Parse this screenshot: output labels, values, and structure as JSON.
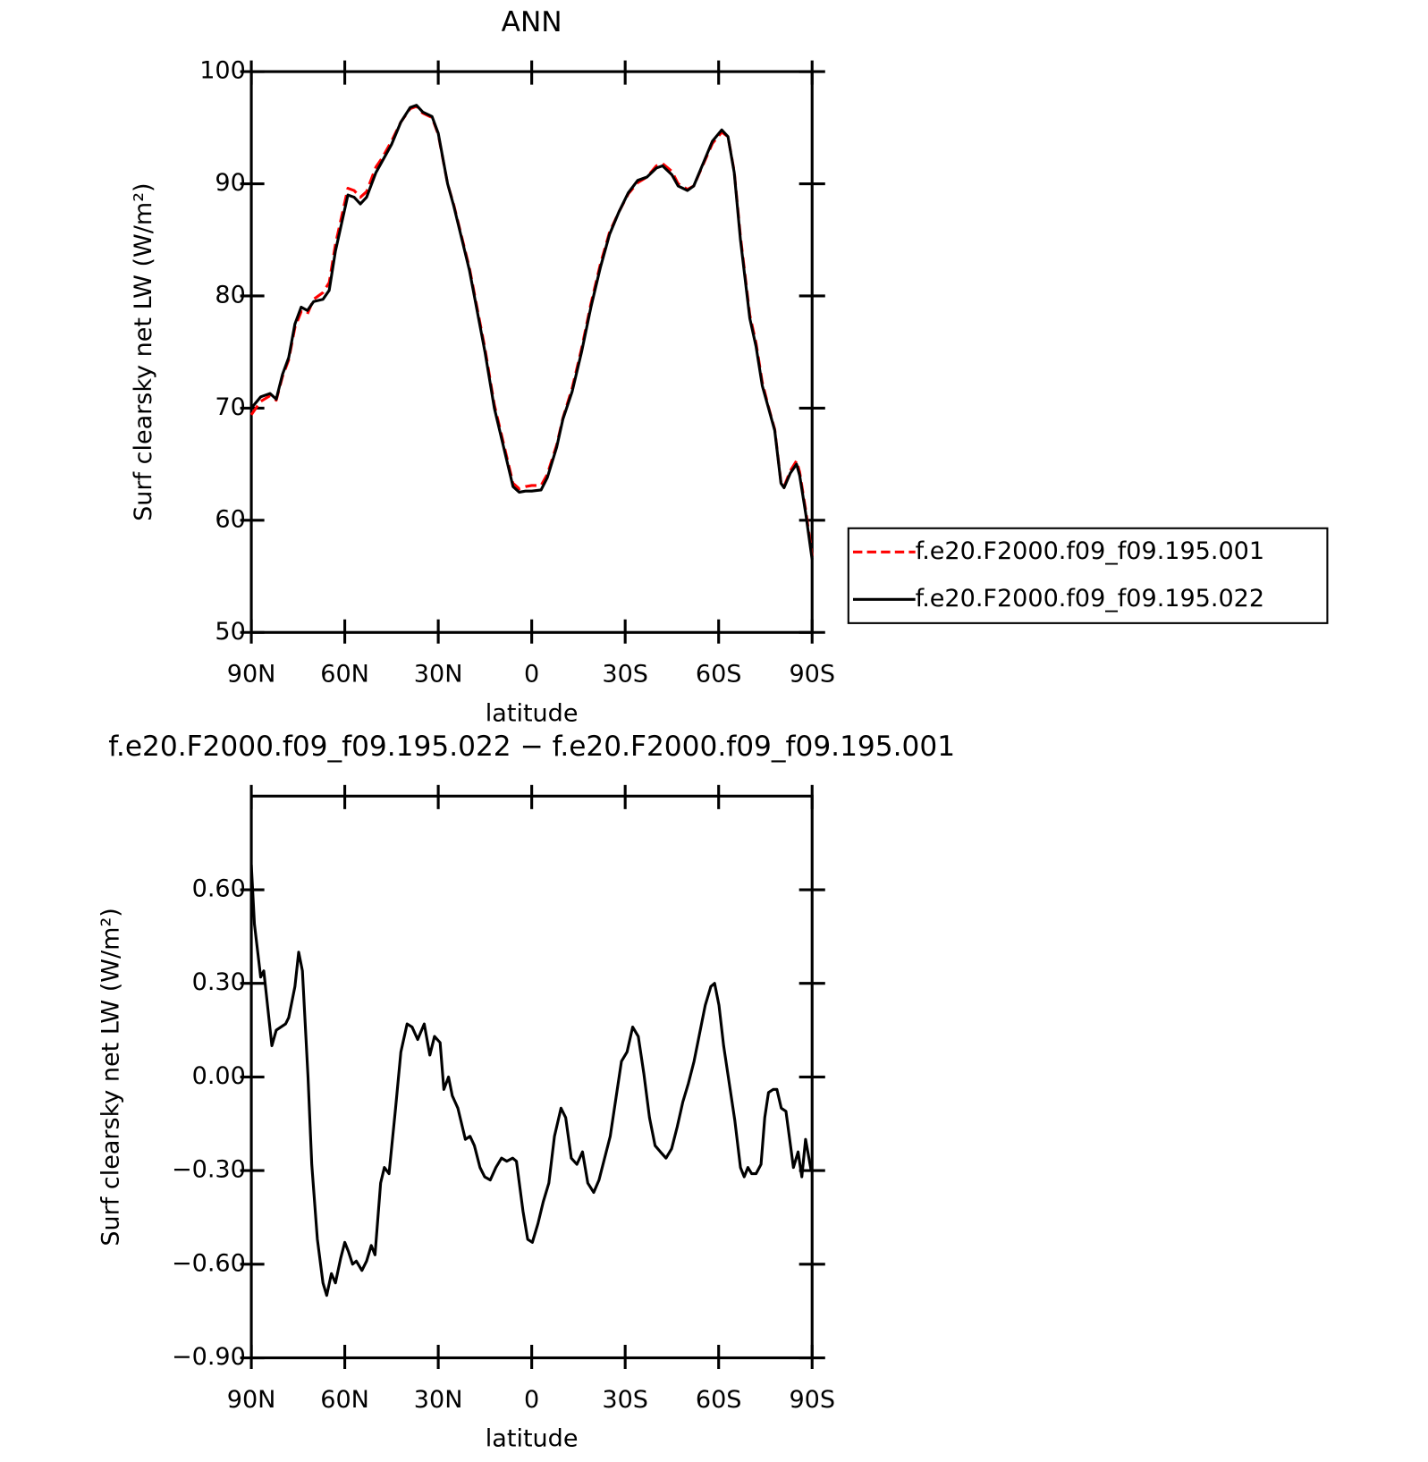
{
  "chart_data": [
    {
      "type": "line",
      "title": "ANN",
      "xlabel": "latitude",
      "ylabel": "Surf clearsky net LW (W/m²)",
      "xlim": [
        90,
        -90
      ],
      "ylim": [
        50,
        100
      ],
      "xticks": [
        {
          "value": 90,
          "label": "90N"
        },
        {
          "value": 60,
          "label": "60N"
        },
        {
          "value": 30,
          "label": "30N"
        },
        0,
        {
          "value": -30,
          "label": "30S"
        },
        {
          "value": -60,
          "label": "60S"
        },
        {
          "value": -90,
          "label": "90S"
        }
      ],
      "yticks": [
        50,
        60,
        70,
        80,
        90,
        100
      ],
      "legend": "outside-right",
      "x": [
        90,
        87,
        84,
        82,
        80,
        78,
        76,
        74,
        72,
        70,
        67,
        65,
        63,
        61,
        59,
        57,
        55,
        53,
        50,
        48,
        45,
        42,
        39,
        37,
        35,
        32,
        30,
        27,
        25,
        20,
        15,
        12,
        9,
        6,
        4,
        2,
        0,
        -3,
        -5,
        -8,
        -10,
        -13,
        -16,
        -19,
        -22,
        -25,
        -28,
        -31,
        -34,
        -37,
        -40,
        -42,
        -45,
        -47,
        -50,
        -52,
        -55,
        -58,
        -61,
        -63,
        -65,
        -67,
        -70,
        -72,
        -74,
        -76,
        -78,
        -80,
        -81,
        -83,
        -85,
        -86,
        -88,
        -90
      ],
      "series": [
        {
          "name": "f.e20.F2000.f09_f09.195.001",
          "color": "#ff0000",
          "dash": "12 6",
          "values": [
            69.4,
            70.6,
            71.1,
            70.7,
            72.8,
            74.3,
            77.2,
            78.6,
            78.4,
            79.7,
            80.3,
            81.2,
            84.6,
            87.1,
            89.6,
            89.4,
            88.8,
            89.3,
            91.5,
            92.3,
            93.8,
            95.5,
            96.7,
            96.9,
            96.3,
            95.9,
            94.4,
            90.0,
            88.1,
            82.5,
            75.3,
            70.3,
            66.8,
            63.3,
            62.8,
            63.0,
            63.1,
            63.1,
            64.1,
            66.7,
            69.1,
            71.8,
            75.3,
            79.3,
            82.8,
            85.7,
            87.5,
            89.1,
            90.1,
            90.6,
            91.6,
            91.8,
            91.1,
            90.0,
            89.5,
            89.8,
            91.7,
            93.6,
            94.6,
            94.2,
            91.1,
            85.3,
            78.3,
            75.8,
            72.3,
            70.1,
            68.1,
            63.4,
            63.0,
            64.4,
            65.3,
            64.3,
            60.8,
            56.8
          ]
        },
        {
          "name": "f.e20.F2000.f09_f09.195.022",
          "color": "#000000",
          "values": [
            70.0,
            71.0,
            71.3,
            70.8,
            73.0,
            74.5,
            77.5,
            79.0,
            78.7,
            79.5,
            79.7,
            80.5,
            84.0,
            86.5,
            89.0,
            88.8,
            88.2,
            88.8,
            91.0,
            92.0,
            93.5,
            95.5,
            96.8,
            97.0,
            96.4,
            96.0,
            94.5,
            90.0,
            88.0,
            82.3,
            75.0,
            70.0,
            66.5,
            63.0,
            62.5,
            62.6,
            62.6,
            62.7,
            63.8,
            66.5,
            69.0,
            71.5,
            75.0,
            79.0,
            82.5,
            85.5,
            87.5,
            89.2,
            90.3,
            90.6,
            91.4,
            91.6,
            90.8,
            89.8,
            89.4,
            89.8,
            91.8,
            93.8,
            94.8,
            94.2,
            91.0,
            85.0,
            78.0,
            75.5,
            72.0,
            70.0,
            68.0,
            63.3,
            62.9,
            64.2,
            65.0,
            64.0,
            60.5,
            56.5
          ]
        }
      ]
    },
    {
      "type": "line",
      "title": "f.e20.F2000.f09_f09.195.022 − f.e20.F2000.f09_f09.195.001",
      "xlabel": "latitude",
      "ylabel": "Surf clearsky net LW (W/m²)",
      "xlim": [
        90,
        -90
      ],
      "ylim": [
        -0.9,
        0.9
      ],
      "xticks": [
        {
          "value": 90,
          "label": "90N"
        },
        {
          "value": 60,
          "label": "60N"
        },
        {
          "value": 30,
          "label": "30N"
        },
        0,
        {
          "value": -30,
          "label": "30S"
        },
        {
          "value": -60,
          "label": "60S"
        },
        {
          "value": -90,
          "label": "90S"
        }
      ],
      "yticks": [
        {
          "value": -0.9,
          "label": "−0.90"
        },
        {
          "value": -0.6,
          "label": "−0.60"
        },
        {
          "value": -0.3,
          "label": "−0.30"
        },
        {
          "value": 0,
          "label": "0.00"
        },
        {
          "value": 0.3,
          "label": "0.30"
        },
        {
          "value": 0.6,
          "label": "0.60"
        }
      ],
      "x": [
        90,
        89,
        87,
        86,
        83.4,
        82,
        79,
        78,
        76,
        74.8,
        73.6,
        71.8,
        70.6,
        68.8,
        67,
        65.8,
        64.3,
        63,
        61.3,
        60,
        58.8,
        57.5,
        56.3,
        54.5,
        53,
        51.5,
        50.3,
        48.5,
        47.3,
        45.8,
        43.7,
        42,
        40,
        38.4,
        36.6,
        34.5,
        32.7,
        31.2,
        29.4,
        28.2,
        26.7,
        25.5,
        23.7,
        21.3,
        19.8,
        18.4,
        16.6,
        15.1,
        13.3,
        11.5,
        9.7,
        8,
        6.1,
        4.9,
        2.8,
        1.3,
        -0.2,
        -2,
        -3.7,
        -5.5,
        -7.3,
        -9.4,
        -10.9,
        -12.7,
        -14.5,
        -16.3,
        -18,
        -19.9,
        -21.6,
        -23.4,
        -25.2,
        -27,
        -28.8,
        -30.6,
        -32.4,
        -34.2,
        -36,
        -37.8,
        -39.6,
        -41.3,
        -43.1,
        -44.9,
        -46.7,
        -48.5,
        -50.3,
        -52.1,
        -53.9,
        -55.7,
        -57.5,
        -58.7,
        -60.1,
        -61.6,
        -63.4,
        -65.2,
        -67,
        -68.2,
        -69.4,
        -70.6,
        -72,
        -73.6,
        -74.8,
        -76,
        -77.5,
        -78.7,
        -80.1,
        -81.6,
        -82.8,
        -84,
        -85.5,
        -86.7,
        -87.9,
        -89.7
      ],
      "series": [
        {
          "color": "#000000",
          "values": [
            0.68,
            0.49,
            0.32,
            0.34,
            0.1,
            0.15,
            0.17,
            0.19,
            0.29,
            0.4,
            0.34,
            0.0,
            -0.28,
            -0.52,
            -0.66,
            -0.7,
            -0.63,
            -0.66,
            -0.58,
            -0.53,
            -0.56,
            -0.6,
            -0.59,
            -0.62,
            -0.59,
            -0.54,
            -0.57,
            -0.34,
            -0.29,
            -0.31,
            -0.1,
            0.08,
            0.17,
            0.16,
            0.12,
            0.17,
            0.07,
            0.13,
            0.11,
            -0.04,
            0.0,
            -0.06,
            -0.1,
            -0.2,
            -0.19,
            -0.22,
            -0.29,
            -0.32,
            -0.33,
            -0.29,
            -0.26,
            -0.27,
            -0.26,
            -0.27,
            -0.43,
            -0.52,
            -0.53,
            -0.47,
            -0.4,
            -0.34,
            -0.19,
            -0.1,
            -0.13,
            -0.26,
            -0.28,
            -0.24,
            -0.34,
            -0.37,
            -0.33,
            -0.26,
            -0.19,
            -0.07,
            0.05,
            0.08,
            0.16,
            0.13,
            0.01,
            -0.13,
            -0.22,
            -0.24,
            -0.26,
            -0.23,
            -0.16,
            -0.08,
            -0.02,
            0.05,
            0.14,
            0.23,
            0.29,
            0.3,
            0.23,
            0.1,
            -0.02,
            -0.14,
            -0.29,
            -0.32,
            -0.29,
            -0.31,
            -0.31,
            -0.28,
            -0.13,
            -0.05,
            -0.04,
            -0.04,
            -0.1,
            -0.11,
            -0.2,
            -0.29,
            -0.24,
            -0.32,
            -0.2,
            -0.3
          ]
        }
      ]
    }
  ]
}
